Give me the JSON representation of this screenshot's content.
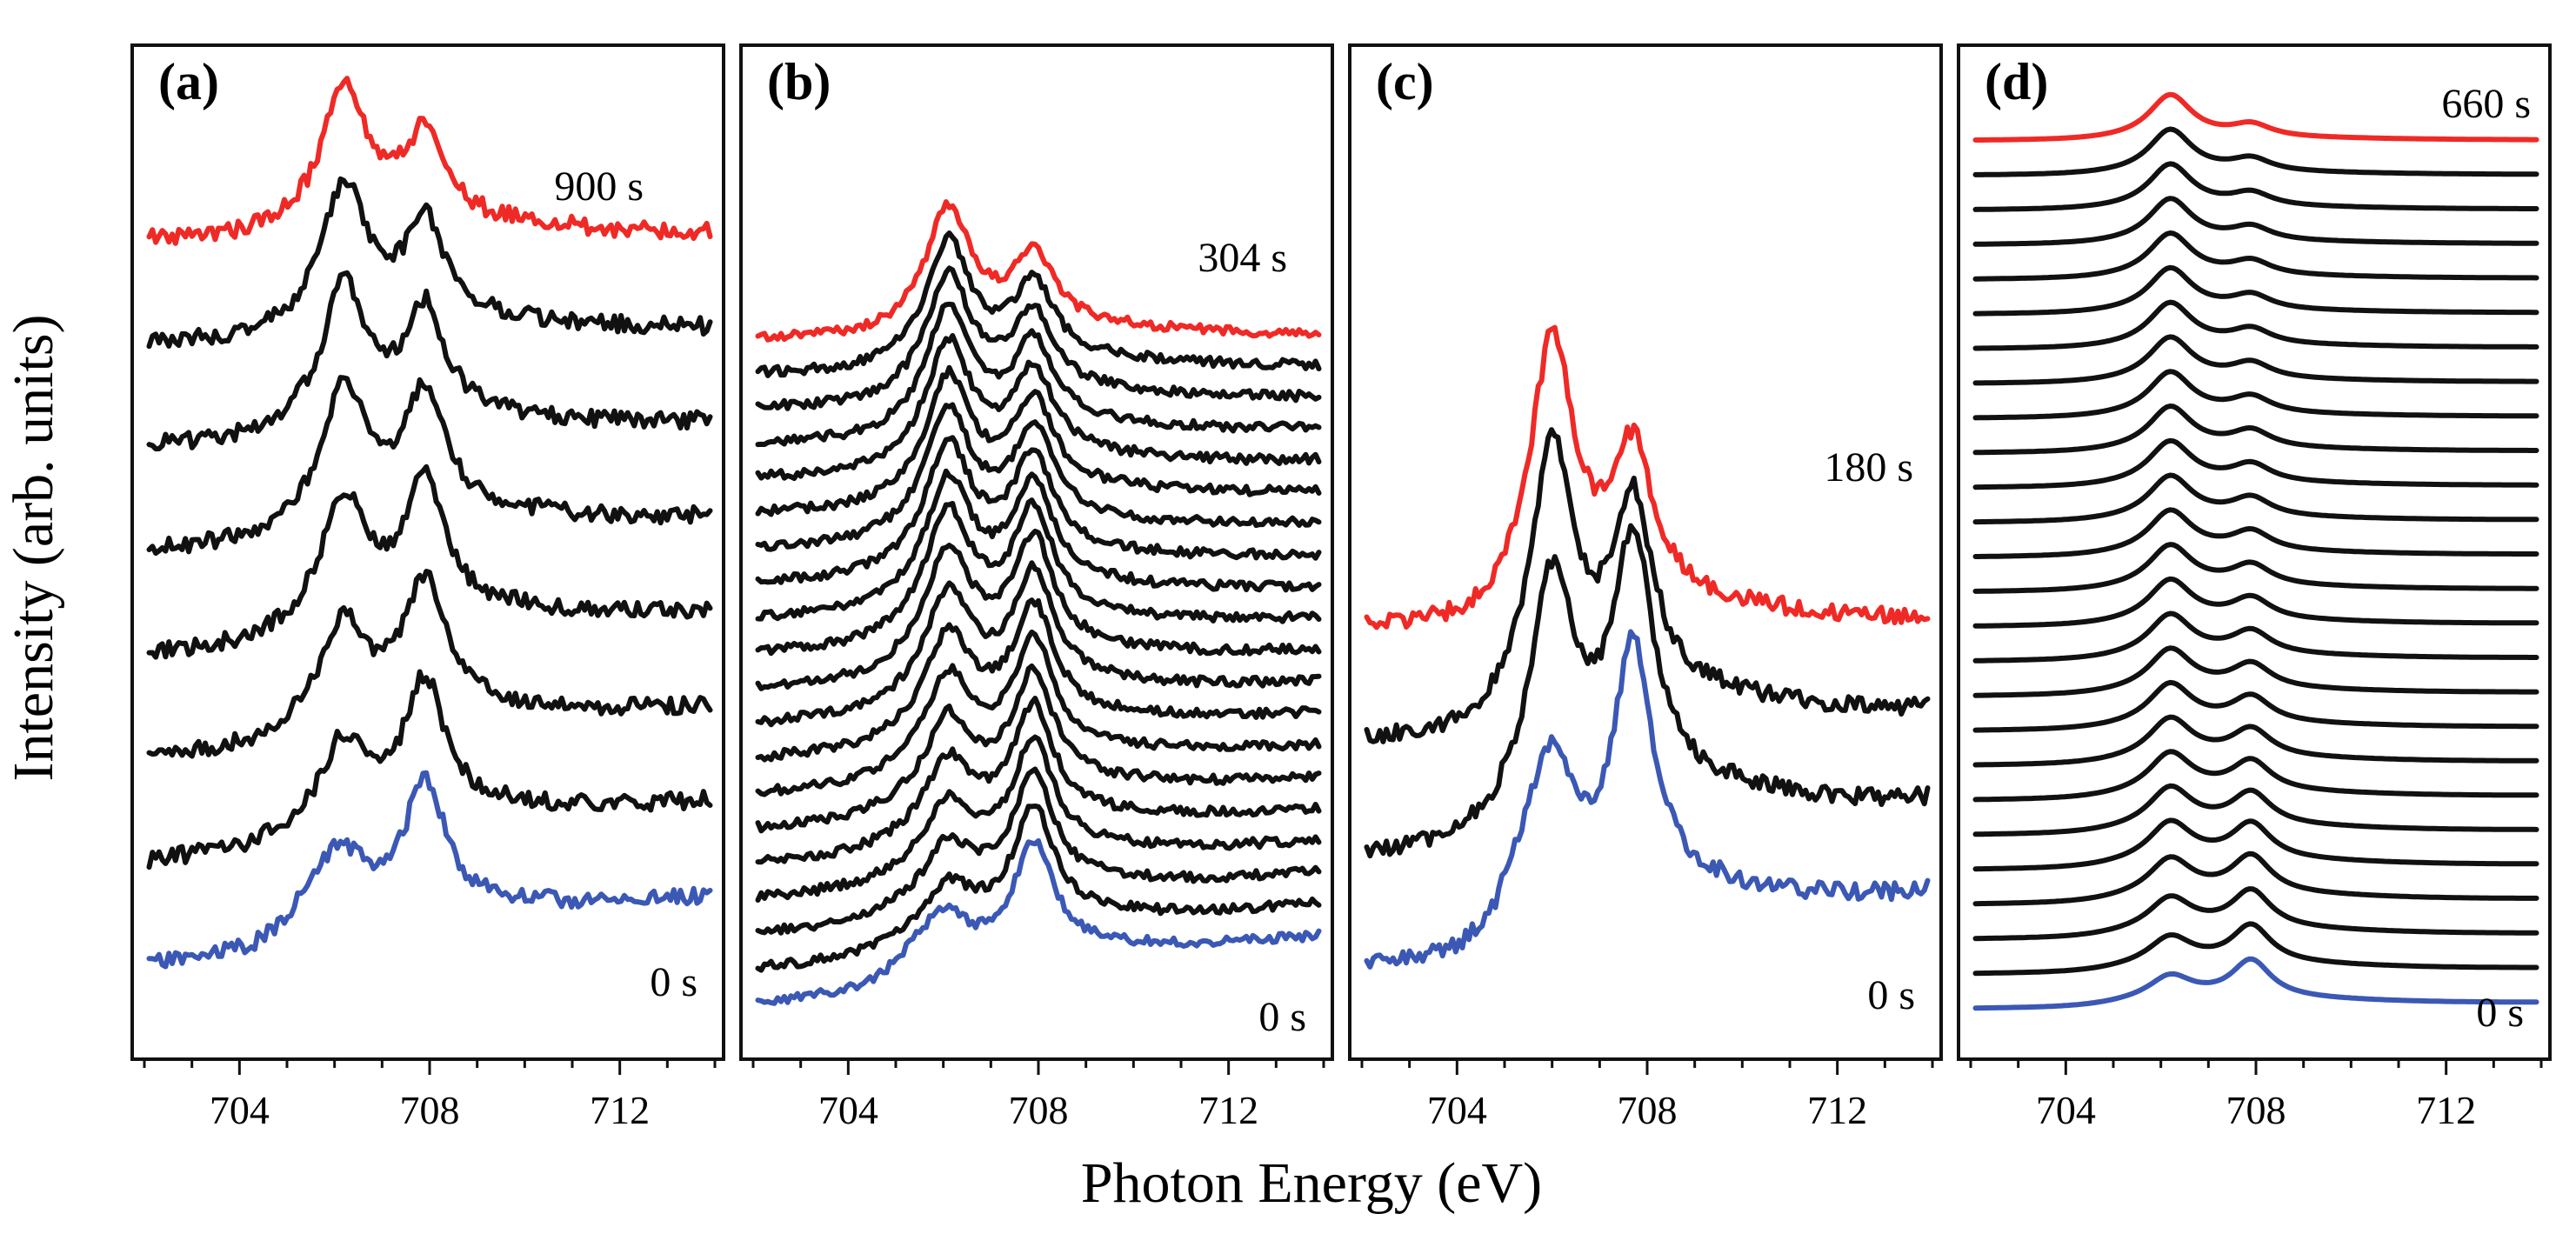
{
  "chart_data": {
    "type": "line",
    "xlabel": "Photon Energy (eV)",
    "ylabel": "Intensity (arb. units)",
    "x_ticks": [
      704,
      708,
      712
    ],
    "xlim": [
      702,
      714
    ],
    "colors": {
      "first": "#3b58b5",
      "intermediate": "#111111",
      "last": "#ef2a26"
    },
    "panels": [
      {
        "label": "(a)",
        "first_time_label": "0 s",
        "last_time_label": "900 s",
        "n_spectra": 8,
        "peak_L3_eV": 706.2,
        "peak_L2_eV": 707.9,
        "first_peak_ratio": 0.42,
        "last_peak_ratio": 1.6,
        "noise": 0.055,
        "seed": 11
      },
      {
        "label": "(b)",
        "first_time_label": "0 s",
        "last_time_label": "304 s",
        "n_spectra": 20,
        "peak_L3_eV": 706.1,
        "peak_L2_eV": 707.9,
        "first_peak_ratio": 0.3,
        "last_peak_ratio": 1.7,
        "noise": 0.035,
        "seed": 23
      },
      {
        "label": "(c)",
        "first_time_label": "0 s",
        "last_time_label": "180 s",
        "n_spectra": 4,
        "peak_L3_eV": 706.0,
        "peak_L2_eV": 707.7,
        "first_peak_ratio": 0.45,
        "last_peak_ratio": 1.8,
        "noise": 0.03,
        "seed": 37
      },
      {
        "label": "(d)",
        "first_time_label": "0 s",
        "last_time_label": "660 s",
        "n_spectra": 26,
        "peak_L3_eV": 706.2,
        "peak_L2_eV": 707.9,
        "first_peak_ratio": 0.6,
        "last_peak_ratio": 3.5,
        "noise": 0.0,
        "seed": 5
      }
    ]
  }
}
